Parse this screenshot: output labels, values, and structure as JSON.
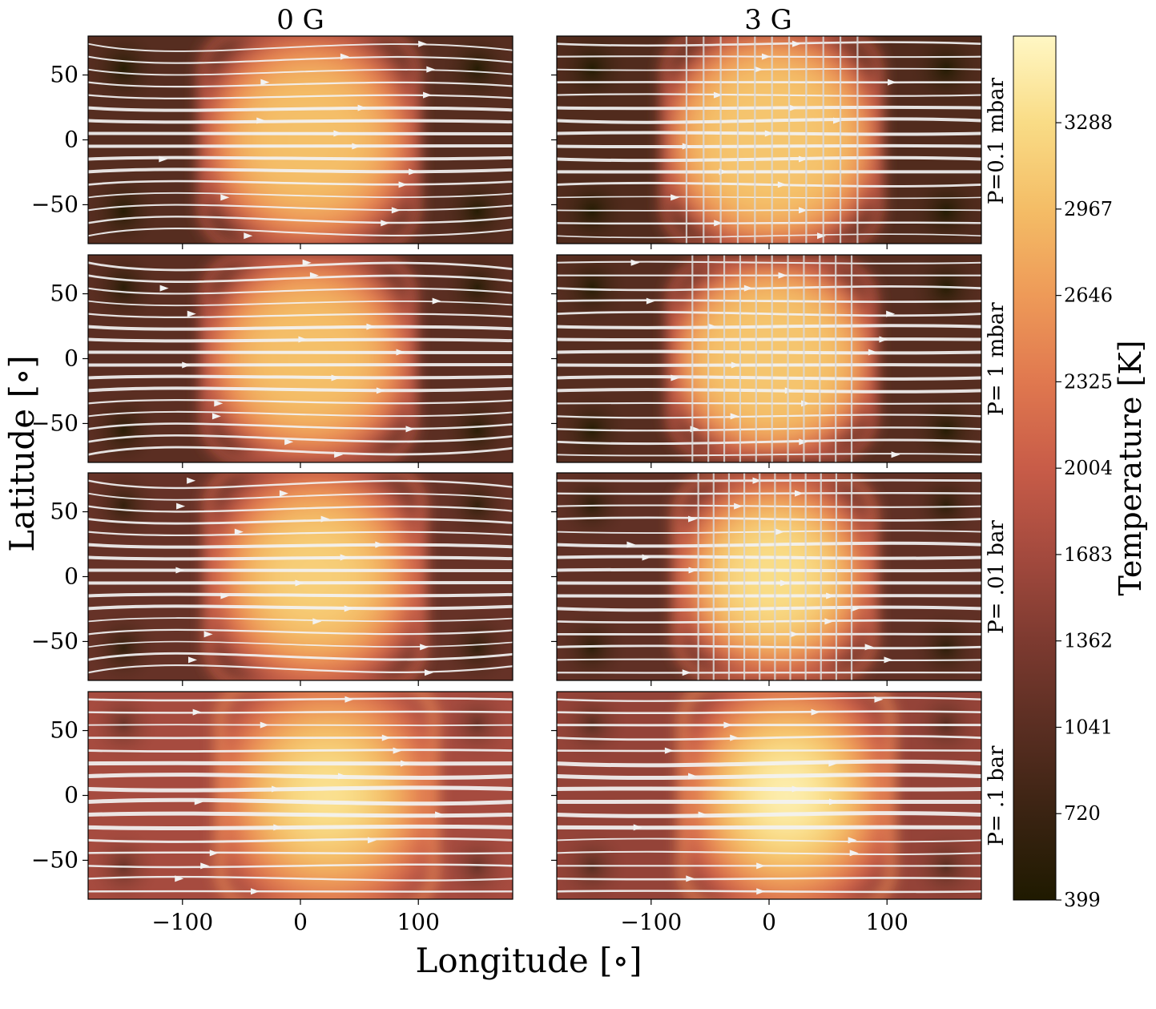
{
  "chart_data": {
    "type": "heatmap",
    "title": "",
    "column_titles": [
      "0 G",
      "3 G"
    ],
    "row_labels": [
      "P=0.1 mbar",
      "P= 1 mbar",
      "P= .01 bar",
      "P= .1 bar"
    ],
    "xlabel": "Longitude [∘]",
    "ylabel": "Latitude [∘]",
    "xlim": [
      -180,
      180
    ],
    "ylim": [
      -80,
      80
    ],
    "xticks": [
      -100,
      0,
      100
    ],
    "yticks": [
      50,
      0,
      -50
    ],
    "xtick_labels": [
      "−100",
      "0",
      "100"
    ],
    "ytick_labels": [
      "50",
      "0",
      "−50"
    ],
    "colorbar": {
      "label": "Temperature [K]",
      "min": 399,
      "max": 3610,
      "ticks": [
        399,
        720,
        1041,
        1362,
        1683,
        2004,
        2325,
        2646,
        2967,
        3288
      ],
      "colormap": [
        "#1f1a00",
        "#3a2312",
        "#5a2e22",
        "#7d3a30",
        "#a44a3e",
        "#c85c48",
        "#e0784f",
        "#ee9a58",
        "#f4bd66",
        "#f9dc86",
        "#fff7c4"
      ]
    },
    "panels": [
      {
        "field": "0 G",
        "pressure": "P=0.1 mbar",
        "hot_lon": [
          -80,
          95
        ],
        "hot_T": 3000,
        "night_T": 1000,
        "hot_lat": 80,
        "shape": 4
      },
      {
        "field": "3 G",
        "pressure": "P=0.1 mbar",
        "hot_lon": [
          -85,
          90
        ],
        "hot_T": 3050,
        "night_T": 950,
        "hot_lat": 80,
        "shape": 5
      },
      {
        "field": "0 G",
        "pressure": "P= 1 mbar",
        "hot_lon": [
          -78,
          92
        ],
        "hot_T": 3000,
        "night_T": 1050,
        "hot_lat": 76,
        "shape": 4
      },
      {
        "field": "3 G",
        "pressure": "P= 1 mbar",
        "hot_lon": [
          -80,
          85
        ],
        "hot_T": 3050,
        "night_T": 1000,
        "hot_lat": 72,
        "shape": 5
      },
      {
        "field": "0 G",
        "pressure": "P= .01 bar",
        "hot_lon": [
          -75,
          100
        ],
        "hot_T": 3150,
        "night_T": 1150,
        "hot_lat": 82,
        "shape": 3
      },
      {
        "field": "3 G",
        "pressure": "P= .01 bar",
        "hot_lon": [
          -75,
          85
        ],
        "hot_T": 3300,
        "night_T": 1100,
        "hot_lat": 75,
        "shape": 3
      },
      {
        "field": "0 G",
        "pressure": "P= .1 bar",
        "hot_lon": [
          -65,
          110
        ],
        "hot_T": 3350,
        "night_T": 1700,
        "hot_lat": 85,
        "shape": 2
      },
      {
        "field": "3 G",
        "pressure": "P= .1 bar",
        "hot_lon": [
          -70,
          100
        ],
        "hot_T": 3500,
        "night_T": 1550,
        "hot_lat": 85,
        "shape": 2
      }
    ]
  }
}
